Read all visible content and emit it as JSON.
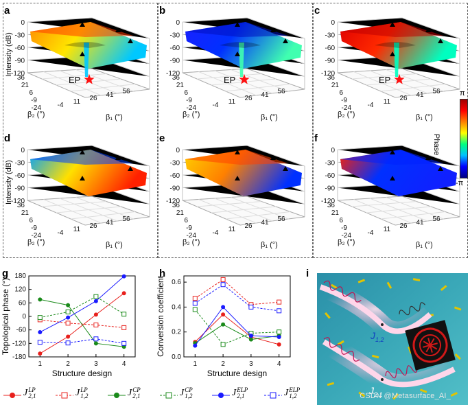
{
  "panels_3d": [
    {
      "letter": "a",
      "ylabel": "Intensity (dB)",
      "ep_label": "EP",
      "show_ep": true,
      "palette": "rainbow_a"
    },
    {
      "letter": "b",
      "ylabel": "",
      "ep_label": "EP",
      "show_ep": true,
      "palette": "blue_b"
    },
    {
      "letter": "c",
      "ylabel": "",
      "ep_label": "EP",
      "show_ep": true,
      "palette": "red_c"
    },
    {
      "letter": "d",
      "ylabel": "Intensity (dB)",
      "ep_label": "",
      "show_ep": false,
      "palette": "mix_d"
    },
    {
      "letter": "e",
      "ylabel": "",
      "ep_label": "",
      "show_ep": false,
      "palette": "mix_e"
    },
    {
      "letter": "f",
      "ylabel": "",
      "ep_label": "",
      "show_ep": false,
      "palette": "blue_f"
    }
  ],
  "axes3d": {
    "z_ticks": [
      "0",
      "-30",
      "-60",
      "-90",
      "-120"
    ],
    "beta2_ticks": [
      "36",
      "21",
      "6",
      "-9",
      "-24"
    ],
    "beta1_ticks": [
      "-4",
      "11",
      "26",
      "41",
      "56"
    ],
    "beta2_label": "β₂ (°)",
    "beta1_label": "β₁ (°)"
  },
  "colorbar": {
    "label": "Phase",
    "top": "π",
    "bottom": "-π",
    "colors": [
      "#a00000",
      "#ff0000",
      "#ff8000",
      "#ffff00",
      "#00ff80",
      "#00c0ff",
      "#0000ff",
      "#000080"
    ]
  },
  "chart_data": [
    {
      "id": "g",
      "type": "line",
      "title": "",
      "xlabel": "Structure design",
      "ylabel": "Topological phase (°)",
      "xlim": [
        0.6,
        4.4
      ],
      "ylim": [
        -180,
        180
      ],
      "x_ticks": [
        "1",
        "2",
        "3",
        "4"
      ],
      "y_ticks": [
        "180",
        "120",
        "60",
        "0",
        "-60",
        "-120",
        "-180"
      ],
      "x": [
        1,
        2,
        3,
        4
      ],
      "series": [
        {
          "name": "J2,1 LP",
          "color": "#e8201c",
          "dashed": false,
          "marker": "circle",
          "values": [
            -165,
            -90,
            8,
            103
          ]
        },
        {
          "name": "J1,2 LP",
          "color": "#e8201c",
          "dashed": true,
          "marker": "square",
          "values": [
            -15,
            -30,
            -38,
            -50
          ]
        },
        {
          "name": "J2,1 CP",
          "color": "#1a8a1a",
          "dashed": false,
          "marker": "circle",
          "values": [
            75,
            50,
            -120,
            -135
          ]
        },
        {
          "name": "J1,2 CP",
          "color": "#1a8a1a",
          "dashed": true,
          "marker": "square",
          "values": [
            -5,
            20,
            88,
            10
          ]
        },
        {
          "name": "J2,1 ELP",
          "color": "#1a1aff",
          "dashed": false,
          "marker": "circle",
          "values": [
            -70,
            -5,
            68,
            178
          ]
        },
        {
          "name": "J1,2 ELP",
          "color": "#1a1aff",
          "dashed": true,
          "marker": "square",
          "values": [
            -115,
            -118,
            -100,
            -120
          ]
        }
      ]
    },
    {
      "id": "h",
      "type": "line",
      "title": "",
      "xlabel": "Structure design",
      "ylabel": "Conversion coefficient",
      "xlim": [
        0.6,
        4.4
      ],
      "ylim": [
        0,
        0.65
      ],
      "x_ticks": [
        "1",
        "2",
        "3",
        "4"
      ],
      "y_ticks": [
        "0.6",
        "0.4",
        "0.2",
        "0.0"
      ],
      "x": [
        1,
        2,
        3,
        4
      ],
      "series": [
        {
          "name": "J2,1 LP",
          "color": "#e8201c",
          "dashed": false,
          "marker": "circle",
          "values": [
            0.12,
            0.34,
            0.16,
            0.1
          ]
        },
        {
          "name": "J1,2 LP",
          "color": "#e8201c",
          "dashed": true,
          "marker": "square",
          "values": [
            0.47,
            0.62,
            0.42,
            0.44
          ]
        },
        {
          "name": "J2,1 CP",
          "color": "#1a8a1a",
          "dashed": false,
          "marker": "circle",
          "values": [
            0.11,
            0.26,
            0.14,
            0.17
          ]
        },
        {
          "name": "J1,2 CP",
          "color": "#1a8a1a",
          "dashed": true,
          "marker": "square",
          "values": [
            0.38,
            0.1,
            0.19,
            0.2
          ]
        },
        {
          "name": "J2,1 ELP",
          "color": "#1a1aff",
          "dashed": false,
          "marker": "circle",
          "values": [
            0.09,
            0.4,
            0.17,
            0.16
          ]
        },
        {
          "name": "J1,2 ELP",
          "color": "#1a1aff",
          "dashed": true,
          "marker": "square",
          "values": [
            0.43,
            0.58,
            0.4,
            0.37
          ]
        }
      ]
    }
  ],
  "panel_g_letter": "g",
  "panel_h_letter": "h",
  "panel_i_letter": "i",
  "legend": [
    {
      "sym": "J",
      "sub": "2,1",
      "sup": "LP",
      "color": "#e8201c",
      "dashed": false,
      "marker": "circle"
    },
    {
      "sym": "J",
      "sub": "1,2",
      "sup": "LP",
      "color": "#e8201c",
      "dashed": true,
      "marker": "square"
    },
    {
      "sym": "J",
      "sub": "2,1",
      "sup": "CP",
      "color": "#1a8a1a",
      "dashed": false,
      "marker": "circle"
    },
    {
      "sym": "J",
      "sub": "1,2",
      "sup": "CP",
      "color": "#1a8a1a",
      "dashed": true,
      "marker": "square"
    },
    {
      "sym": "J",
      "sub": "2,1",
      "sup": "ELP",
      "color": "#1a1aff",
      "dashed": false,
      "marker": "circle"
    },
    {
      "sym": "J",
      "sub": "1,2",
      "sup": "ELP",
      "color": "#1a1aff",
      "dashed": true,
      "marker": "square"
    }
  ],
  "illustration": {
    "j12_label": "J",
    "j12_sub": "1,2",
    "j21_label": "J",
    "j21_sub": "2,1"
  },
  "watermark": "CSDN @Metasurface_AI_"
}
